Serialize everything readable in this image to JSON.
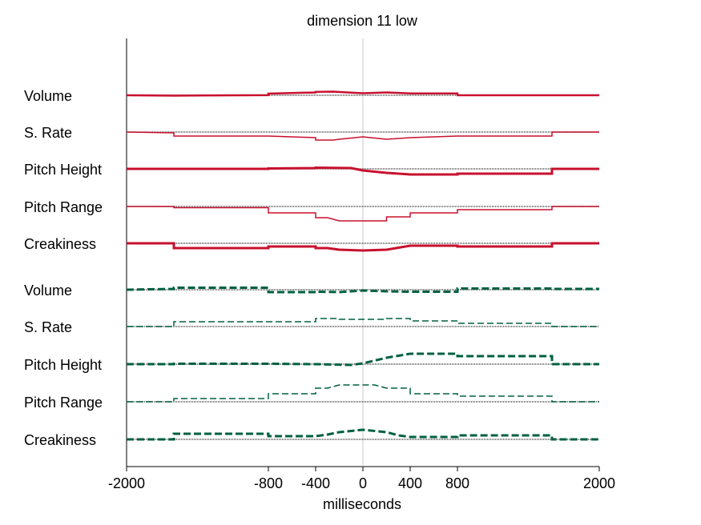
{
  "chart_data": {
    "type": "line",
    "title": "dimension 11 low",
    "xlabel": "milliseconds",
    "ylabel": "",
    "xlim": [
      -2000,
      2000
    ],
    "xticks": [
      -2000,
      -800,
      -400,
      0,
      400,
      800,
      2000
    ],
    "xtick_labels": [
      "-2000",
      "-800",
      "-400",
      "0",
      "400",
      "800",
      "2000"
    ],
    "grid": false,
    "legend": "none",
    "vertical_reference_x": 0,
    "series_colors": {
      "red": "#c8102e",
      "green": "#006040"
    },
    "groups": [
      {
        "color": "#c8102e",
        "dash": "solid",
        "rows": [
          {
            "label": "Volume",
            "width": 2.5,
            "steps": [
              [
                -2000,
                0.0
              ],
              [
                -1600,
                -0.5
              ],
              [
                -800,
                0.1
              ],
              [
                -800,
                2.0
              ],
              [
                -400,
                3.5
              ],
              [
                -400,
                4.2
              ],
              [
                -250,
                4.5
              ],
              [
                -100,
                3.2
              ],
              [
                0,
                2.5
              ],
              [
                200,
                3.5
              ],
              [
                400,
                2.3
              ],
              [
                800,
                2.3
              ],
              [
                800,
                0.0
              ],
              [
                1600,
                0.0
              ],
              [
                2000,
                0.0
              ]
            ]
          },
          {
            "label": "S. Rate",
            "width": 1.5,
            "steps": [
              [
                -2000,
                0.0
              ],
              [
                -1600,
                -1.0
              ],
              [
                -1600,
                -5.0
              ],
              [
                -800,
                -5.0
              ],
              [
                -400,
                -7.0
              ],
              [
                -400,
                -10.0
              ],
              [
                -250,
                -10.0
              ],
              [
                -200,
                -9.0
              ],
              [
                0,
                -6.0
              ],
              [
                200,
                -9.0
              ],
              [
                400,
                -7.0
              ],
              [
                800,
                -5.0
              ],
              [
                1600,
                -5.0
              ],
              [
                1600,
                0.0
              ],
              [
                2000,
                0.0
              ]
            ]
          },
          {
            "label": "Pitch Height",
            "width": 3.0,
            "steps": [
              [
                -2000,
                0.0
              ],
              [
                -1600,
                0.0
              ],
              [
                -800,
                0.0
              ],
              [
                -800,
                0.5
              ],
              [
                -400,
                1.0
              ],
              [
                -400,
                1.5
              ],
              [
                -100,
                1.0
              ],
              [
                0,
                -2.0
              ],
              [
                200,
                -5.0
              ],
              [
                400,
                -7.0
              ],
              [
                800,
                -7.0
              ],
              [
                800,
                -6.0
              ],
              [
                1600,
                -6.0
              ],
              [
                1600,
                0.0
              ],
              [
                2000,
                0.0
              ]
            ]
          },
          {
            "label": "Pitch Range",
            "width": 1.5,
            "steps": [
              [
                -2000,
                0.0
              ],
              [
                -1600,
                0.0
              ],
              [
                -1600,
                -1.5
              ],
              [
                -800,
                -1.5
              ],
              [
                -800,
                -8.0
              ],
              [
                -400,
                -8.0
              ],
              [
                -400,
                -14.0
              ],
              [
                -300,
                -14.0
              ],
              [
                -200,
                -18.0
              ],
              [
                200,
                -18.0
              ],
              [
                200,
                -13.0
              ],
              [
                400,
                -13.0
              ],
              [
                400,
                -8.0
              ],
              [
                800,
                -8.0
              ],
              [
                800,
                -4.0
              ],
              [
                1600,
                -4.0
              ],
              [
                1600,
                0.0
              ],
              [
                2000,
                0.0
              ]
            ]
          },
          {
            "label": "Creakiness",
            "width": 3.0,
            "steps": [
              [
                -2000,
                0.0
              ],
              [
                -1600,
                0.0
              ],
              [
                -1600,
                -6.0
              ],
              [
                -800,
                -6.0
              ],
              [
                -800,
                -4.0
              ],
              [
                -400,
                -4.0
              ],
              [
                -400,
                -6.0
              ],
              [
                -300,
                -6.0
              ],
              [
                -200,
                -8.0
              ],
              [
                0,
                -9.0
              ],
              [
                200,
                -8.0
              ],
              [
                300,
                -5.5
              ],
              [
                400,
                -3.0
              ],
              [
                800,
                -3.0
              ],
              [
                800,
                -4.0
              ],
              [
                1600,
                -4.0
              ],
              [
                1600,
                0.0
              ],
              [
                2000,
                0.0
              ]
            ]
          }
        ]
      },
      {
        "color": "#006040",
        "dash": "dashed",
        "rows": [
          {
            "label": "Volume",
            "width": 3.0,
            "steps": [
              [
                -2000,
                0.0
              ],
              [
                -1600,
                1.0
              ],
              [
                -1600,
                2.5
              ],
              [
                -800,
                2.5
              ],
              [
                -800,
                -3.0
              ],
              [
                -400,
                -3.0
              ],
              [
                -400,
                -2.5
              ],
              [
                -200,
                -3.0
              ],
              [
                -100,
                -2.0
              ],
              [
                0,
                -1.0
              ],
              [
                200,
                -2.0
              ],
              [
                400,
                -2.5
              ],
              [
                800,
                -2.5
              ],
              [
                800,
                1.5
              ],
              [
                1600,
                1.5
              ],
              [
                1600,
                1.0
              ],
              [
                2000,
                1.0
              ]
            ]
          },
          {
            "label": "S. Rate",
            "width": 1.5,
            "steps": [
              [
                -2000,
                0.0
              ],
              [
                -1600,
                0.0
              ],
              [
                -1600,
                6.0
              ],
              [
                -800,
                6.0
              ],
              [
                -400,
                6.0
              ],
              [
                -400,
                10.0
              ],
              [
                -200,
                10.0
              ],
              [
                -200,
                9.0
              ],
              [
                0,
                9.0
              ],
              [
                200,
                9.0
              ],
              [
                200,
                10.0
              ],
              [
                400,
                10.0
              ],
              [
                400,
                7.0
              ],
              [
                800,
                7.0
              ],
              [
                800,
                4.0
              ],
              [
                1600,
                4.0
              ],
              [
                1600,
                0.0
              ],
              [
                2000,
                0.0
              ]
            ]
          },
          {
            "label": "Pitch Height",
            "width": 3.0,
            "steps": [
              [
                -2000,
                0.0
              ],
              [
                -1600,
                0.0
              ],
              [
                -1600,
                0.5
              ],
              [
                -800,
                0.5
              ],
              [
                -400,
                0.0
              ],
              [
                -100,
                -1.0
              ],
              [
                0,
                1.0
              ],
              [
                200,
                8.0
              ],
              [
                400,
                13.0
              ],
              [
                800,
                13.0
              ],
              [
                800,
                10.0
              ],
              [
                1600,
                10.0
              ],
              [
                1600,
                0.0
              ],
              [
                2000,
                0.0
              ]
            ]
          },
          {
            "label": "Pitch Range",
            "width": 1.5,
            "steps": [
              [
                -2000,
                0.0
              ],
              [
                -1600,
                0.0
              ],
              [
                -1600,
                4.0
              ],
              [
                -800,
                4.0
              ],
              [
                -800,
                10.0
              ],
              [
                -400,
                10.0
              ],
              [
                -400,
                17.0
              ],
              [
                -300,
                17.0
              ],
              [
                -200,
                21.0
              ],
              [
                100,
                21.0
              ],
              [
                200,
                17.0
              ],
              [
                400,
                17.0
              ],
              [
                400,
                10.0
              ],
              [
                800,
                10.0
              ],
              [
                800,
                7.0
              ],
              [
                1600,
                7.0
              ],
              [
                1600,
                0.0
              ],
              [
                2000,
                0.0
              ]
            ]
          },
          {
            "label": "Creakiness",
            "width": 3.0,
            "steps": [
              [
                -2000,
                0.0
              ],
              [
                -1600,
                0.0
              ],
              [
                -1600,
                7.0
              ],
              [
                -800,
                7.0
              ],
              [
                -800,
                4.0
              ],
              [
                -400,
                4.0
              ],
              [
                -300,
                6.0
              ],
              [
                -200,
                9.0
              ],
              [
                0,
                12.0
              ],
              [
                200,
                9.0
              ],
              [
                300,
                5.0
              ],
              [
                400,
                3.0
              ],
              [
                800,
                3.0
              ],
              [
                800,
                5.0
              ],
              [
                1600,
                5.0
              ],
              [
                1600,
                0.0
              ],
              [
                2000,
                0.0
              ]
            ]
          }
        ]
      }
    ]
  }
}
